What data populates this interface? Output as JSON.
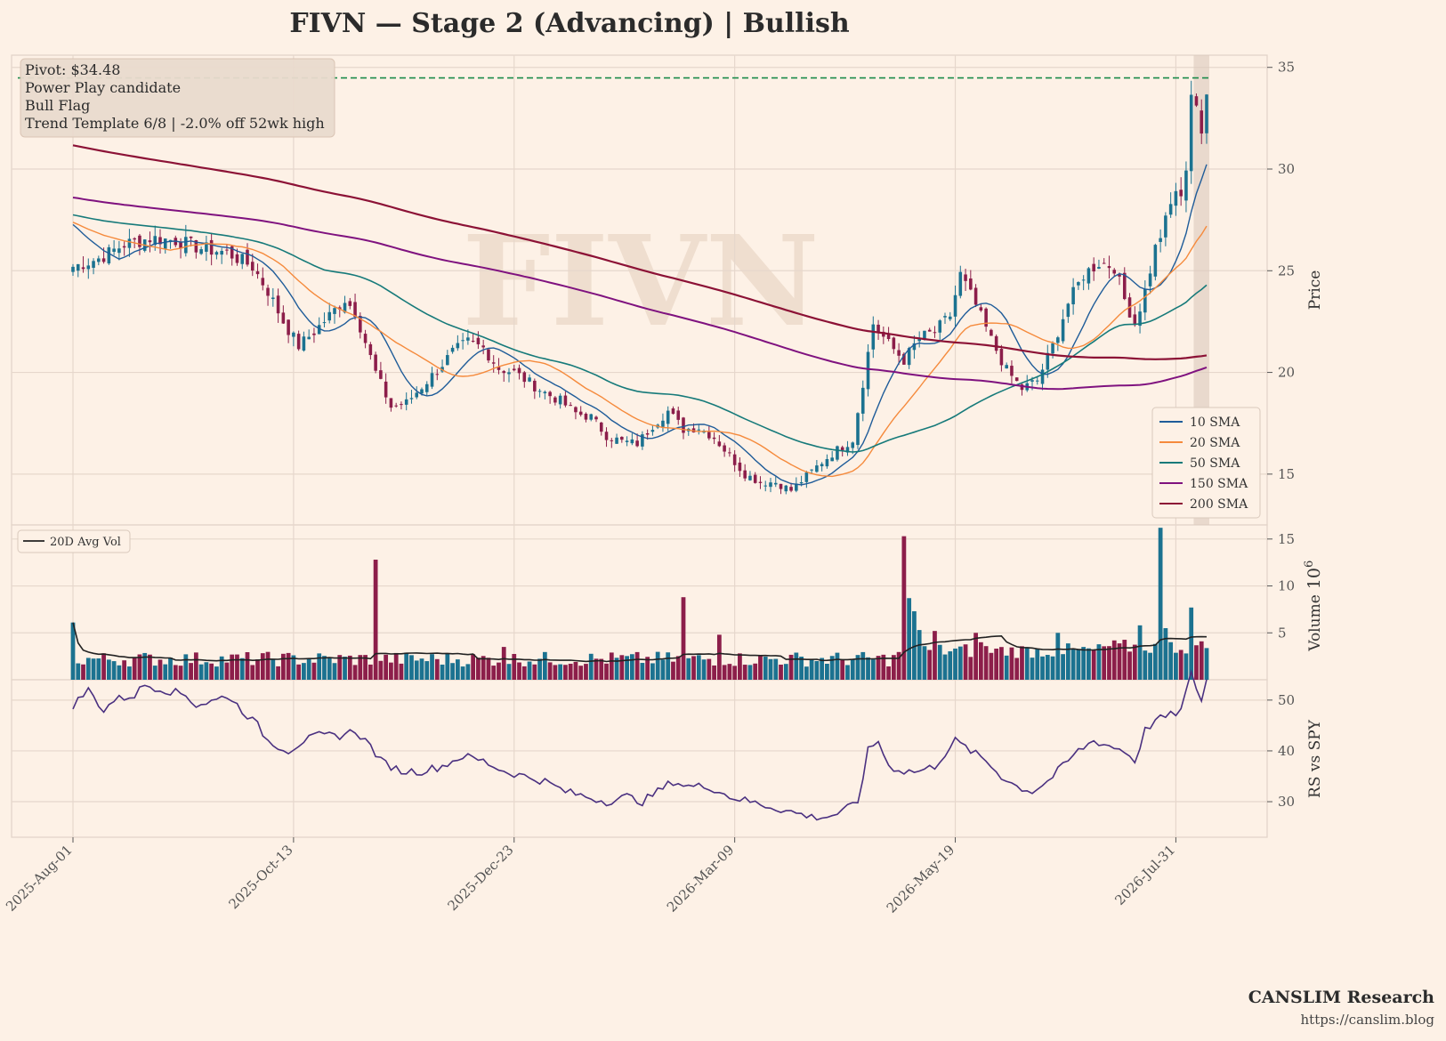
{
  "chart_data": {
    "type": "candlestick",
    "title": "FIVN  —  Stage 2 (Advancing)  |  Bullish",
    "ticker_watermark": "FIVN",
    "annotation": {
      "lines": [
        "Pivot: $34.48",
        "Power Play candidate",
        "Bull Flag",
        "Trend Template 6/8  |  -2.0% off 52wk high"
      ]
    },
    "pivot": 34.48,
    "colors": {
      "up": "#1b7290",
      "down": "#8c1e4a",
      "pivot": "#1a8a4a",
      "sma10": "#1f5c99",
      "sma20": "#f58a3c",
      "sma50": "#167a7a",
      "sma150": "#7f127f",
      "sma200": "#8c1236",
      "avgvol": "#222222",
      "rs": "#4a3080",
      "grid": "#e6d7cc"
    },
    "price_panel": {
      "ylabel": "Price",
      "ylim": [
        12.5,
        35.6
      ],
      "yticks": [
        15,
        20,
        25,
        30,
        35
      ],
      "legend": [
        "10 SMA",
        "20 SMA",
        "50 SMA",
        "150 SMA",
        "200 SMA"
      ],
      "legend_loc": "lower-right",
      "close_anchors": [
        [
          0,
          25.2
        ],
        [
          5,
          25.6
        ],
        [
          10,
          26.3
        ],
        [
          15,
          26.6
        ],
        [
          20,
          26.5
        ],
        [
          25,
          26.1
        ],
        [
          30,
          25.9
        ],
        [
          35,
          25.2
        ],
        [
          38,
          24.0
        ],
        [
          41,
          22.5
        ],
        [
          44,
          21.3
        ],
        [
          47,
          22.0
        ],
        [
          50,
          22.8
        ],
        [
          53,
          23.6
        ],
        [
          55,
          23.0
        ],
        [
          57,
          21.5
        ],
        [
          59,
          20.0
        ],
        [
          62,
          18.3
        ],
        [
          65,
          18.5
        ],
        [
          68,
          19.3
        ],
        [
          71,
          20.1
        ],
        [
          74,
          21.0
        ],
        [
          77,
          21.5
        ],
        [
          80,
          21.2
        ],
        [
          83,
          20.2
        ],
        [
          86,
          20.0
        ],
        [
          89,
          19.5
        ],
        [
          92,
          19.0
        ],
        [
          95,
          18.6
        ],
        [
          98,
          18.0
        ],
        [
          101,
          17.8
        ],
        [
          104,
          16.9
        ],
        [
          107,
          16.6
        ],
        [
          110,
          16.5
        ],
        [
          113,
          17.4
        ],
        [
          116,
          18.1
        ],
        [
          119,
          17.2
        ],
        [
          122,
          17.3
        ],
        [
          125,
          16.8
        ],
        [
          128,
          15.9
        ],
        [
          131,
          15.0
        ],
        [
          134,
          14.6
        ],
        [
          137,
          14.6
        ],
        [
          140,
          14.2
        ],
        [
          143,
          14.9
        ],
        [
          146,
          15.6
        ],
        [
          149,
          16.2
        ],
        [
          152,
          16.7
        ],
        [
          154,
          19.5
        ],
        [
          156,
          22.4
        ],
        [
          159,
          21.4
        ],
        [
          162,
          20.6
        ],
        [
          165,
          21.7
        ],
        [
          168,
          22.0
        ],
        [
          171,
          22.8
        ],
        [
          173,
          24.8
        ],
        [
          176,
          23.3
        ],
        [
          179,
          21.6
        ],
        [
          182,
          20.1
        ],
        [
          185,
          19.2
        ],
        [
          188,
          19.6
        ],
        [
          191,
          21.3
        ],
        [
          194,
          23.4
        ],
        [
          197,
          24.8
        ],
        [
          200,
          25.4
        ],
        [
          203,
          25.2
        ],
        [
          205,
          23.6
        ],
        [
          207,
          22.4
        ],
        [
          209,
          24.0
        ],
        [
          211,
          26.1
        ],
        [
          213,
          27.4
        ],
        [
          215,
          29.0
        ],
        [
          216,
          28.4
        ],
        [
          217,
          30.2
        ],
        [
          218,
          33.8
        ],
        [
          219,
          33.2
        ],
        [
          220,
          31.4
        ],
        [
          221,
          33.6
        ]
      ]
    },
    "volume_panel": {
      "ylabel": "Volume",
      "multiplier": "10^6",
      "ylim": [
        0,
        16.5
      ],
      "yticks": [
        5,
        10,
        15
      ],
      "legend": "20D Avg Vol",
      "legend_loc": "upper-left",
      "spikes": [
        [
          0,
          6.1
        ],
        [
          59,
          12.8
        ],
        [
          84,
          3.5
        ],
        [
          119,
          8.8
        ],
        [
          126,
          4.8
        ],
        [
          162,
          15.3
        ],
        [
          163,
          8.7
        ],
        [
          164,
          7.3
        ],
        [
          165,
          5.3
        ],
        [
          168,
          5.2
        ],
        [
          176,
          5.0
        ],
        [
          177,
          4.0
        ],
        [
          192,
          5.0
        ],
        [
          208,
          5.8
        ],
        [
          212,
          16.2
        ],
        [
          213,
          5.5
        ],
        [
          218,
          7.7
        ]
      ]
    },
    "rs_panel": {
      "ylabel": "RS vs SPY",
      "ylim": [
        23,
        54
      ],
      "yticks": [
        30,
        40,
        50
      ],
      "anchors": [
        [
          0,
          49
        ],
        [
          3,
          52
        ],
        [
          6,
          48
        ],
        [
          8,
          50
        ],
        [
          12,
          51
        ],
        [
          14,
          53
        ],
        [
          18,
          52
        ],
        [
          22,
          51
        ],
        [
          24,
          49
        ],
        [
          28,
          50
        ],
        [
          30,
          51
        ],
        [
          34,
          47
        ],
        [
          36,
          45
        ],
        [
          38,
          42
        ],
        [
          42,
          40
        ],
        [
          45,
          42
        ],
        [
          48,
          43
        ],
        [
          52,
          43
        ],
        [
          55,
          44
        ],
        [
          58,
          41
        ],
        [
          60,
          38
        ],
        [
          64,
          36
        ],
        [
          68,
          36
        ],
        [
          72,
          37
        ],
        [
          76,
          39
        ],
        [
          80,
          38
        ],
        [
          84,
          36
        ],
        [
          88,
          35
        ],
        [
          92,
          34
        ],
        [
          96,
          32
        ],
        [
          100,
          31
        ],
        [
          104,
          30
        ],
        [
          108,
          31
        ],
        [
          111,
          30
        ],
        [
          114,
          32
        ],
        [
          117,
          34
        ],
        [
          120,
          33
        ],
        [
          124,
          33
        ],
        [
          128,
          31
        ],
        [
          132,
          30
        ],
        [
          136,
          29
        ],
        [
          140,
          28
        ],
        [
          144,
          27
        ],
        [
          147,
          27
        ],
        [
          150,
          28
        ],
        [
          153,
          30
        ],
        [
          155,
          40
        ],
        [
          157,
          42
        ],
        [
          159,
          37
        ],
        [
          162,
          36
        ],
        [
          165,
          36
        ],
        [
          168,
          37
        ],
        [
          172,
          42
        ],
        [
          175,
          40
        ],
        [
          178,
          38
        ],
        [
          181,
          35
        ],
        [
          184,
          33
        ],
        [
          187,
          32
        ],
        [
          190,
          34
        ],
        [
          193,
          37
        ],
        [
          196,
          40
        ],
        [
          199,
          42
        ],
        [
          202,
          41
        ],
        [
          205,
          40
        ],
        [
          207,
          38
        ],
        [
          209,
          44
        ],
        [
          211,
          46
        ],
        [
          214,
          47
        ],
        [
          216,
          48
        ],
        [
          218,
          55
        ],
        [
          220,
          50
        ],
        [
          221,
          54
        ]
      ]
    },
    "x_axis": {
      "n_bars": 222,
      "ticks": [
        [
          0,
          "2025-Aug-01"
        ],
        [
          43,
          "2025-Oct-13"
        ],
        [
          86,
          "2025-Dec-23"
        ],
        [
          129,
          "2026-Mar-09"
        ],
        [
          172,
          "2026-May-19"
        ],
        [
          215,
          "2026-Jul-31"
        ]
      ],
      "highlight_range": [
        219,
        221
      ],
      "grid": true
    }
  },
  "footer": {
    "brand": "CANSLIM Research",
    "url": "https://canslim.blog"
  }
}
